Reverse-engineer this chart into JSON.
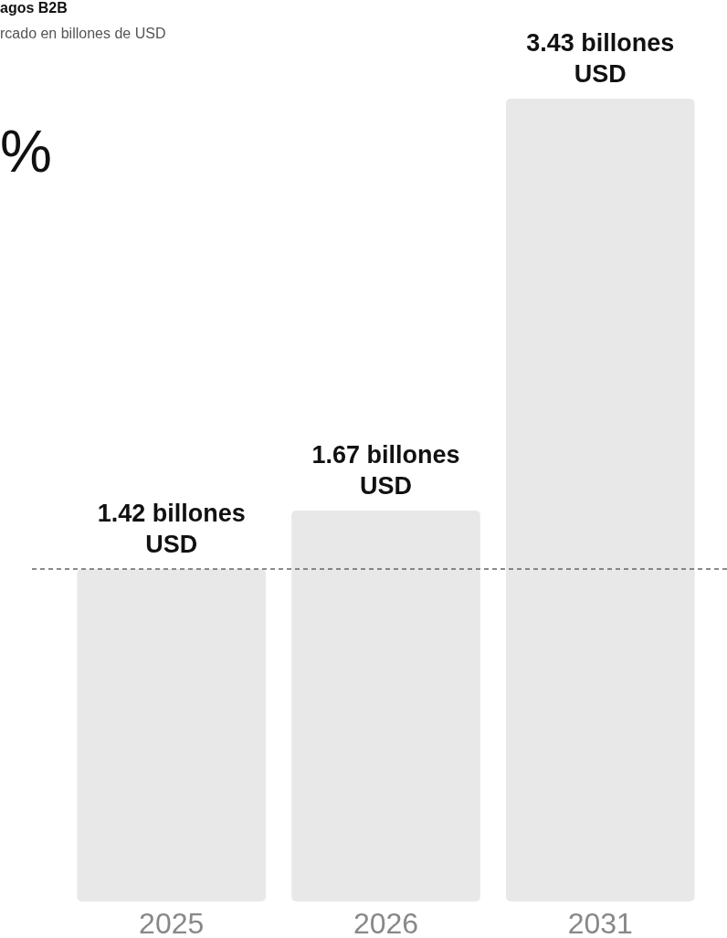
{
  "chart_data": {
    "type": "bar",
    "title": "agos B2B",
    "subtitle": "rcado en billones de USD",
    "annotations": [
      "%"
    ],
    "categories": [
      "2025",
      "2026",
      "2031"
    ],
    "values": [
      1.42,
      1.67,
      3.43
    ],
    "color": "#e8e8e8",
    "value_labels": [
      "1.42 billones USD",
      "1.67 billones USD",
      "3.43 billones USD"
    ],
    "ref_lines": [
      {
        "axis": "y",
        "value": 1.42,
        "color": "#666666",
        "line_style": "dashed"
      }
    ]
  }
}
